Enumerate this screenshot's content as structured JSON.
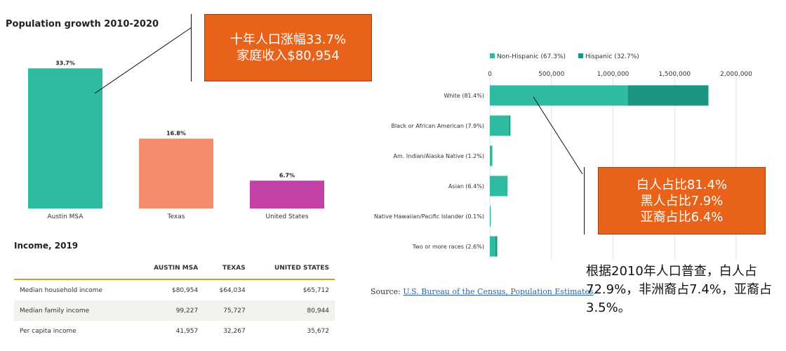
{
  "left_chart": {
    "title": "Population growth 2010-2020"
  },
  "chart_data": [
    {
      "type": "bar",
      "title": "Population growth 2010-2020",
      "categories": [
        "Austin MSA",
        "Texas",
        "United States"
      ],
      "values": [
        33.7,
        16.8,
        6.7
      ],
      "value_labels": [
        "33.7%",
        "16.8%",
        "6.7%"
      ],
      "colors": [
        "#2fbba0",
        "#f58a6c",
        "#c442a6"
      ],
      "ylim": [
        0,
        40
      ]
    },
    {
      "type": "bar",
      "orientation": "horizontal",
      "stacked": true,
      "categories": [
        "White (81.4%)",
        "Black or African American (7.9%)",
        "Am. Indian/Alaska Native (1.2%)",
        "Asian (6.4%)",
        "Native Hawaiian/Pacific Islander (0.1%)",
        "Two or more races (2.6%)"
      ],
      "series": [
        {
          "name": "Non-Hispanic (67.3%)",
          "color": "#2fbba0",
          "values": [
            1120000,
            155000,
            15000,
            140000,
            3000,
            45000
          ]
        },
        {
          "name": "Hispanic (32.7%)",
          "color": "#1a9580",
          "values": [
            655000,
            12000,
            5000,
            3000,
            500,
            15000
          ]
        }
      ],
      "xlim": [
        0,
        2000000
      ],
      "xticks": [
        0,
        500000,
        1000000,
        1500000,
        2000000
      ],
      "xtick_labels": [
        "0",
        "500,000",
        "1,000,000",
        "1,500,000",
        "2,000,000"
      ],
      "legend_position": "top-left",
      "grid": true
    }
  ],
  "callout1": {
    "line1": "十年人口涨幅33.7%",
    "line2": "家庭收入$80,954"
  },
  "callout2": {
    "line1": "白人占比81.4%",
    "line2": "黑人占比7.9%",
    "line3": "亚裔占比6.4%"
  },
  "income": {
    "title": "Income, 2019",
    "columns": [
      "",
      "AUSTIN MSA",
      "TEXAS",
      "UNITED STATES"
    ],
    "rows": [
      [
        "Median household income",
        "$80,954",
        "$64,034",
        "$65,712"
      ],
      [
        "Median family income",
        "99,227",
        "75,727",
        "80,944"
      ],
      [
        "Per capita income",
        "41,957",
        "32,267",
        "35,672"
      ]
    ]
  },
  "source": {
    "prefix": "Source: ",
    "link": "U.S. Bureau of the Census, Population Estimates",
    "suffix": "."
  },
  "note": "根据2010年人口普查，白人占72.9%，非洲裔占7.4%，亚裔占3.5%。"
}
